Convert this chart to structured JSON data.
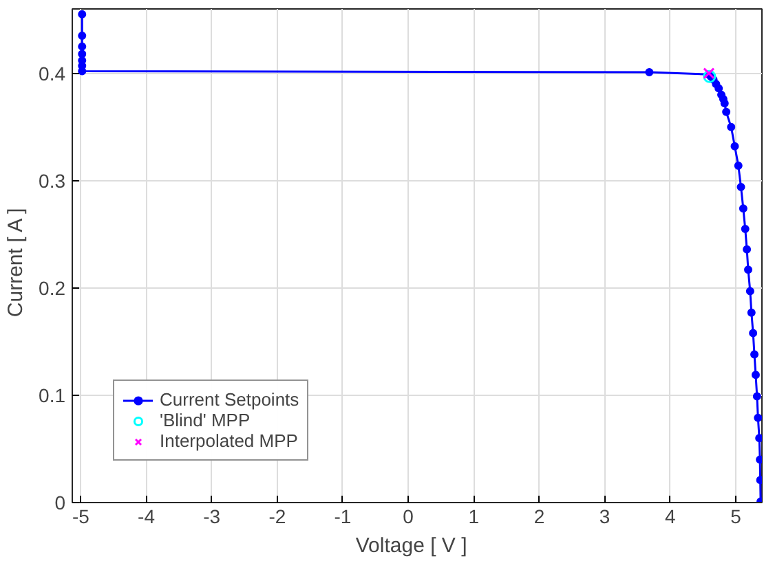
{
  "chart_data": {
    "type": "line",
    "xlabel": "Voltage   [ V ]",
    "ylabel": "Current   [ A ]",
    "xlim": [
      -5.13,
      5.4
    ],
    "ylim": [
      0,
      0.46
    ],
    "xticks": [
      -5,
      -4,
      -3,
      -2,
      -1,
      0,
      1,
      2,
      3,
      4,
      5
    ],
    "yticks": [
      0,
      0.1,
      0.2,
      0.3,
      0.4
    ],
    "grid": true,
    "legend": "bottom left",
    "series": [
      {
        "name": "Current Setpoints",
        "marker": "circle",
        "color": "#0000ff",
        "x": [
          -4.98,
          -4.98,
          -4.98,
          -4.98,
          -4.98,
          -4.98,
          -4.98,
          3.68,
          4.59,
          4.62,
          4.66,
          4.7,
          4.74,
          4.78,
          4.81,
          4.83,
          4.855,
          4.93,
          4.985,
          5.04,
          5.08,
          5.115,
          5.145,
          5.17,
          5.19,
          5.22,
          5.24,
          5.265,
          5.285,
          5.305,
          5.325,
          5.34,
          5.36,
          5.37,
          5.375,
          5.38
        ],
        "values": [
          0.455,
          0.435,
          0.425,
          0.418,
          0.412,
          0.407,
          0.402,
          0.401,
          0.399,
          0.397,
          0.394,
          0.39,
          0.386,
          0.38,
          0.376,
          0.372,
          0.364,
          0.35,
          0.332,
          0.314,
          0.294,
          0.274,
          0.255,
          0.236,
          0.217,
          0.197,
          0.177,
          0.158,
          0.138,
          0.119,
          0.099,
          0.079,
          0.06,
          0.04,
          0.021,
          0.001
        ]
      },
      {
        "name": "'Blind' MPP",
        "type": "scatter",
        "marker": "circle",
        "color": "#00ffff",
        "x": [
          4.6
        ],
        "values": [
          0.397
        ]
      },
      {
        "name": "Interpolated MPP",
        "type": "scatter",
        "marker": "cross",
        "color": "#ff00ff",
        "x": [
          4.59
        ],
        "values": [
          0.4
        ]
      }
    ]
  }
}
